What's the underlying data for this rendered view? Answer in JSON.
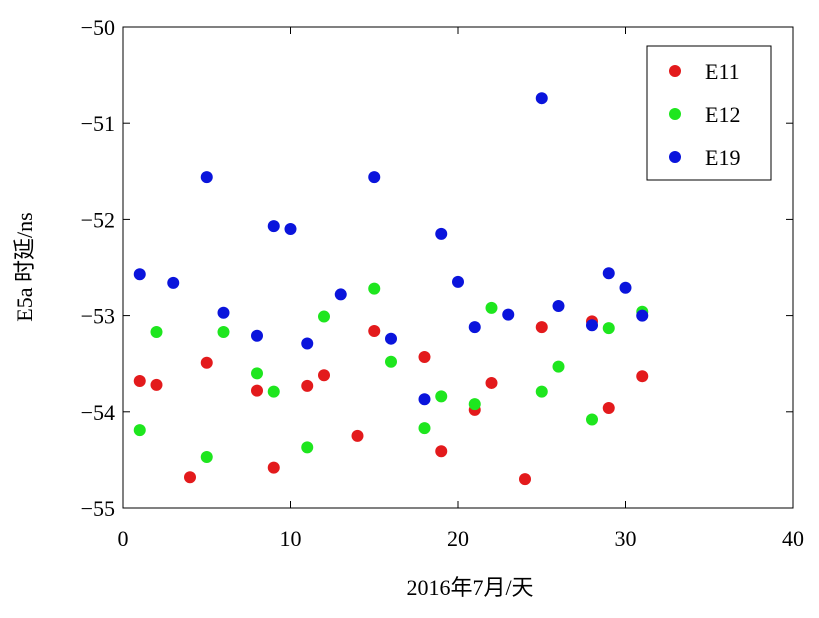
{
  "chart_data": {
    "type": "scatter",
    "xlabel": "2016年7月/天",
    "ylabel": "E5a 时延/ns",
    "xlim": [
      0,
      40
    ],
    "ylim": [
      -55,
      -50
    ],
    "xticks": [
      0,
      10,
      20,
      30,
      40
    ],
    "yticks": [
      -55,
      -54,
      -53,
      -52,
      -51,
      -50
    ],
    "xtick_labels": [
      "0",
      "10",
      "20",
      "30",
      "40"
    ],
    "ytick_labels": [
      "−55",
      "−54",
      "−53",
      "−52",
      "−51",
      "−50"
    ],
    "grid": false,
    "legend_position": "top-right",
    "series": [
      {
        "name": "E11",
        "color": "#e31a1c",
        "x": [
          1,
          2,
          4,
          5,
          8,
          9,
          11,
          12,
          14,
          15,
          18,
          19,
          21,
          22,
          24,
          25,
          28,
          29,
          31
        ],
        "y": [
          -53.68,
          -53.72,
          -54.68,
          -53.49,
          -53.78,
          -54.58,
          -53.73,
          -53.62,
          -54.25,
          -53.16,
          -53.43,
          -54.41,
          -53.98,
          -53.7,
          -54.7,
          -53.12,
          -53.06,
          -53.96,
          -53.63
        ]
      },
      {
        "name": "E12",
        "color": "#1ee61e",
        "x": [
          1,
          2,
          5,
          6,
          8,
          9,
          11,
          12,
          15,
          16,
          18,
          19,
          21,
          22,
          25,
          26,
          28,
          29,
          31
        ],
        "y": [
          -54.19,
          -53.17,
          -54.47,
          -53.17,
          -53.6,
          -53.79,
          -54.37,
          -53.01,
          -52.72,
          -53.48,
          -54.17,
          -53.84,
          -53.92,
          -52.92,
          -53.79,
          -53.53,
          -54.08,
          -53.13,
          -52.96
        ]
      },
      {
        "name": "E19",
        "color": "#0a14dc",
        "x": [
          1,
          3,
          5,
          6,
          8,
          9,
          10,
          11,
          13,
          15,
          16,
          18,
          19,
          20,
          21,
          23,
          25,
          26,
          28,
          29,
          30,
          31
        ],
        "y": [
          -52.57,
          -52.66,
          -51.56,
          -52.97,
          -53.21,
          -52.07,
          -52.1,
          -53.29,
          -52.78,
          -51.56,
          -53.24,
          -53.87,
          -52.15,
          -52.65,
          -53.12,
          -52.99,
          -50.74,
          -52.9,
          -53.1,
          -52.56,
          -52.71,
          -53.0
        ]
      }
    ]
  }
}
